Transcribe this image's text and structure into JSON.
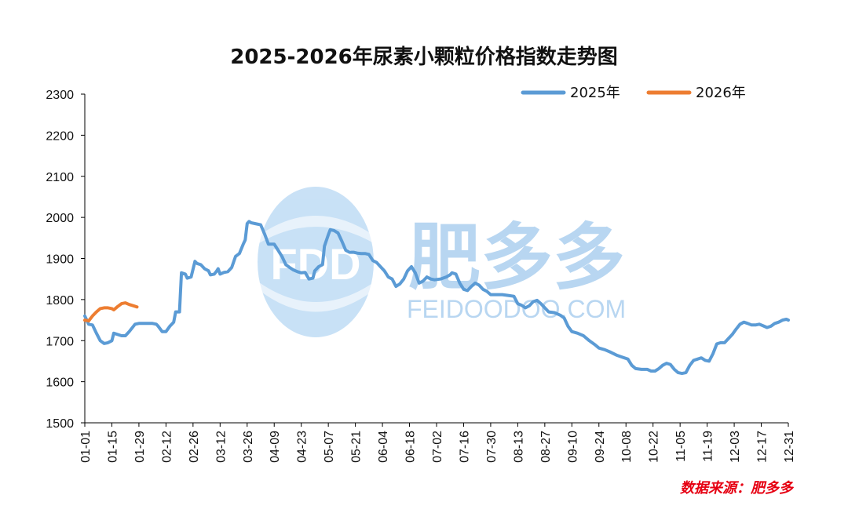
{
  "colors": {
    "series_2025": "#5b9bd5",
    "series_2026": "#ed7d31",
    "source": "#e60012",
    "watermark": "#7fb6e6"
  },
  "watermark": {
    "logo_text": "FDD",
    "brand_cn": "肥多多",
    "brand_url": "FEIDOODOO.COM"
  },
  "source_note": "数据来源：肥多多",
  "chart_data": {
    "type": "line",
    "title": "2025-2026年尿素小颗粒价格指数走势图",
    "xlabel": "",
    "ylabel": "",
    "ylim": [
      1500,
      2300
    ],
    "yticks": [
      1500,
      1600,
      1700,
      1800,
      1900,
      2000,
      2100,
      2200,
      2300
    ],
    "x_tick_labels": [
      "01-01",
      "01-15",
      "01-29",
      "02-12",
      "02-26",
      "03-12",
      "03-26",
      "04-09",
      "04-23",
      "05-07",
      "05-21",
      "06-04",
      "06-18",
      "07-02",
      "07-16",
      "07-30",
      "08-13",
      "08-27",
      "09-10",
      "09-24",
      "10-08",
      "10-22",
      "11-05",
      "11-19",
      "12-03",
      "12-17",
      "12-31"
    ],
    "x_unit": "day of year (MM-DD)",
    "x_range": [
      "01-01",
      "12-31"
    ],
    "grid": false,
    "legend_position": "top-right",
    "series": [
      {
        "name": "2025年",
        "points": [
          [
            "01-01",
            1760
          ],
          [
            "01-03",
            1740
          ],
          [
            "01-05",
            1738
          ],
          [
            "01-07",
            1718
          ],
          [
            "01-09",
            1700
          ],
          [
            "01-11",
            1693
          ],
          [
            "01-13",
            1695
          ],
          [
            "01-15",
            1700
          ],
          [
            "01-16",
            1718
          ],
          [
            "01-18",
            1715
          ],
          [
            "01-20",
            1712
          ],
          [
            "01-22",
            1712
          ],
          [
            "01-24",
            1722
          ],
          [
            "01-27",
            1740
          ],
          [
            "01-29",
            1742
          ],
          [
            "02-02",
            1742
          ],
          [
            "02-05",
            1742
          ],
          [
            "02-07",
            1740
          ],
          [
            "02-08",
            1735
          ],
          [
            "02-10",
            1722
          ],
          [
            "02-12",
            1722
          ],
          [
            "02-14",
            1735
          ],
          [
            "02-16",
            1745
          ],
          [
            "02-17",
            1770
          ],
          [
            "02-19",
            1770
          ],
          [
            "02-20",
            1865
          ],
          [
            "02-22",
            1862
          ],
          [
            "02-23",
            1852
          ],
          [
            "02-25",
            1855
          ],
          [
            "02-27",
            1893
          ],
          [
            "02-28",
            1888
          ],
          [
            "03-02",
            1885
          ],
          [
            "03-04",
            1875
          ],
          [
            "03-06",
            1870
          ],
          [
            "03-07",
            1860
          ],
          [
            "03-09",
            1862
          ],
          [
            "03-10",
            1868
          ],
          [
            "03-11",
            1875
          ],
          [
            "03-12",
            1862
          ],
          [
            "03-14",
            1866
          ],
          [
            "03-16",
            1868
          ],
          [
            "03-18",
            1878
          ],
          [
            "03-20",
            1905
          ],
          [
            "03-22",
            1912
          ],
          [
            "03-24",
            1935
          ],
          [
            "03-25",
            1945
          ],
          [
            "03-26",
            1985
          ],
          [
            "03-27",
            1990
          ],
          [
            "03-28",
            1987
          ],
          [
            "03-30",
            1985
          ],
          [
            "04-02",
            1982
          ],
          [
            "04-04",
            1960
          ],
          [
            "04-06",
            1935
          ],
          [
            "04-09",
            1935
          ],
          [
            "04-11",
            1920
          ],
          [
            "04-13",
            1905
          ],
          [
            "04-15",
            1885
          ],
          [
            "04-17",
            1878
          ],
          [
            "04-19",
            1872
          ],
          [
            "04-21",
            1868
          ],
          [
            "04-23",
            1865
          ],
          [
            "04-25",
            1866
          ],
          [
            "04-27",
            1850
          ],
          [
            "04-29",
            1852
          ],
          [
            "04-30",
            1870
          ],
          [
            "05-02",
            1880
          ],
          [
            "05-04",
            1885
          ],
          [
            "05-05",
            1930
          ],
          [
            "05-07",
            1958
          ],
          [
            "05-08",
            1970
          ],
          [
            "05-10",
            1968
          ],
          [
            "05-12",
            1962
          ],
          [
            "05-14",
            1942
          ],
          [
            "05-16",
            1920
          ],
          [
            "05-18",
            1915
          ],
          [
            "05-20",
            1915
          ],
          [
            "05-22",
            1913
          ],
          [
            "05-24",
            1912
          ],
          [
            "05-26",
            1912
          ],
          [
            "05-28",
            1910
          ],
          [
            "05-30",
            1895
          ],
          [
            "06-01",
            1890
          ],
          [
            "06-03",
            1880
          ],
          [
            "06-05",
            1870
          ],
          [
            "06-07",
            1855
          ],
          [
            "06-09",
            1850
          ],
          [
            "06-11",
            1832
          ],
          [
            "06-13",
            1838
          ],
          [
            "06-15",
            1850
          ],
          [
            "06-17",
            1870
          ],
          [
            "06-19",
            1880
          ],
          [
            "06-21",
            1865
          ],
          [
            "06-23",
            1840
          ],
          [
            "06-25",
            1845
          ],
          [
            "06-27",
            1855
          ],
          [
            "06-29",
            1850
          ],
          [
            "07-01",
            1848
          ],
          [
            "07-04",
            1850
          ],
          [
            "07-07",
            1855
          ],
          [
            "07-09",
            1860
          ],
          [
            "07-10",
            1865
          ],
          [
            "07-12",
            1862
          ],
          [
            "07-14",
            1840
          ],
          [
            "07-16",
            1825
          ],
          [
            "07-18",
            1822
          ],
          [
            "07-20",
            1832
          ],
          [
            "07-22",
            1840
          ],
          [
            "07-24",
            1835
          ],
          [
            "07-26",
            1825
          ],
          [
            "07-28",
            1820
          ],
          [
            "07-30",
            1812
          ],
          [
            "08-02",
            1812
          ],
          [
            "08-05",
            1812
          ],
          [
            "08-08",
            1810
          ],
          [
            "08-11",
            1808
          ],
          [
            "08-13",
            1790
          ],
          [
            "08-15",
            1786
          ],
          [
            "08-17",
            1780
          ],
          [
            "08-19",
            1785
          ],
          [
            "08-21",
            1795
          ],
          [
            "08-23",
            1798
          ],
          [
            "08-25",
            1790
          ],
          [
            "08-27",
            1780
          ],
          [
            "08-29",
            1770
          ],
          [
            "09-01",
            1768
          ],
          [
            "09-04",
            1762
          ],
          [
            "09-06",
            1755
          ],
          [
            "09-08",
            1735
          ],
          [
            "09-10",
            1722
          ],
          [
            "09-13",
            1718
          ],
          [
            "09-16",
            1712
          ],
          [
            "09-19",
            1700
          ],
          [
            "09-22",
            1690
          ],
          [
            "09-24",
            1682
          ],
          [
            "09-27",
            1678
          ],
          [
            "09-30",
            1672
          ],
          [
            "10-03",
            1665
          ],
          [
            "10-06",
            1660
          ],
          [
            "10-09",
            1655
          ],
          [
            "10-11",
            1640
          ],
          [
            "10-13",
            1632
          ],
          [
            "10-16",
            1630
          ],
          [
            "10-19",
            1630
          ],
          [
            "10-21",
            1626
          ],
          [
            "10-23",
            1626
          ],
          [
            "10-25",
            1632
          ],
          [
            "10-27",
            1640
          ],
          [
            "10-29",
            1645
          ],
          [
            "10-31",
            1642
          ],
          [
            "11-02",
            1630
          ],
          [
            "11-04",
            1622
          ],
          [
            "11-06",
            1620
          ],
          [
            "11-08",
            1622
          ],
          [
            "11-10",
            1640
          ],
          [
            "11-12",
            1652
          ],
          [
            "11-14",
            1655
          ],
          [
            "11-16",
            1658
          ],
          [
            "11-18",
            1652
          ],
          [
            "11-20",
            1650
          ],
          [
            "11-22",
            1668
          ],
          [
            "11-24",
            1692
          ],
          [
            "11-26",
            1695
          ],
          [
            "11-28",
            1695
          ],
          [
            "11-30",
            1705
          ],
          [
            "12-02",
            1715
          ],
          [
            "12-04",
            1728
          ],
          [
            "12-06",
            1740
          ],
          [
            "12-08",
            1745
          ],
          [
            "12-10",
            1742
          ],
          [
            "12-12",
            1738
          ],
          [
            "12-14",
            1738
          ],
          [
            "12-16",
            1740
          ],
          [
            "12-18",
            1736
          ],
          [
            "12-20",
            1732
          ],
          [
            "12-22",
            1735
          ],
          [
            "12-24",
            1742
          ],
          [
            "12-26",
            1745
          ],
          [
            "12-28",
            1750
          ],
          [
            "12-30",
            1752
          ],
          [
            "12-31",
            1750
          ]
        ]
      },
      {
        "name": "2026年",
        "points": [
          [
            "01-01",
            1750
          ],
          [
            "01-03",
            1748
          ],
          [
            "01-05",
            1760
          ],
          [
            "01-07",
            1770
          ],
          [
            "01-09",
            1778
          ],
          [
            "01-11",
            1780
          ],
          [
            "01-13",
            1780
          ],
          [
            "01-15",
            1778
          ],
          [
            "01-16",
            1775
          ],
          [
            "01-18",
            1783
          ],
          [
            "01-20",
            1790
          ],
          [
            "01-22",
            1792
          ],
          [
            "01-24",
            1788
          ],
          [
            "01-26",
            1785
          ],
          [
            "01-28",
            1782
          ]
        ]
      }
    ]
  }
}
